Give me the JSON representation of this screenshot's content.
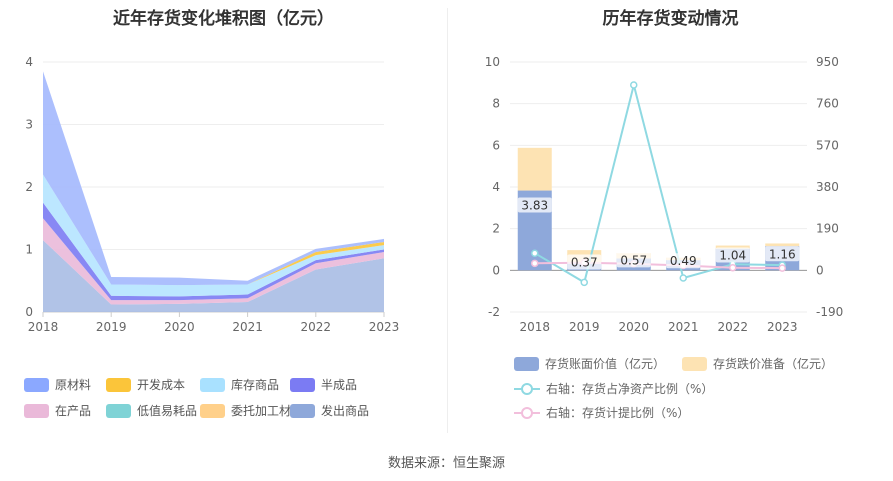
{
  "left": {
    "title": "近年存货变化堆积图（亿元）",
    "legend": [
      {
        "label": "原材料",
        "color": "#8ba8ff"
      },
      {
        "label": "开发成本",
        "color": "#fbc53a"
      },
      {
        "label": "库存商品",
        "color": "#a9e1ff"
      },
      {
        "label": "半成品",
        "color": "#7b7bf3"
      },
      {
        "label": "在产品",
        "color": "#eab9d9"
      },
      {
        "label": "低值易耗品",
        "color": "#7fd3d6"
      },
      {
        "label": "委托加工材料",
        "color": "#ffd08a"
      },
      {
        "label": "发出商品",
        "color": "#8ea8da"
      }
    ]
  },
  "right": {
    "title": "历年存货变动情况",
    "legend": [
      {
        "label": "存货账面价值（亿元）",
        "color": "#8ea8da",
        "kind": "bar"
      },
      {
        "label": "存货跌价准备（亿元）",
        "color": "#fde3b3",
        "kind": "bar"
      },
      {
        "label": "右轴：存货占净资产比例（%）",
        "color": "#8fd9e2",
        "kind": "line"
      },
      {
        "label": "右轴：存货计提比例（%）",
        "color": "#f2bfdc",
        "kind": "line"
      }
    ]
  },
  "source": "数据来源：恒生聚源",
  "chart_data": [
    {
      "type": "area",
      "title": "近年存货变化堆积图（亿元）",
      "categories": [
        "2018",
        "2019",
        "2020",
        "2021",
        "2022",
        "2023"
      ],
      "yticks": [
        "0",
        "1",
        "2",
        "3",
        "4"
      ],
      "ylim": [
        0,
        4
      ],
      "stacked": true,
      "series": [
        {
          "name": "发出商品",
          "color": "#a8bde4",
          "values": [
            1.15,
            0.12,
            0.13,
            0.16,
            0.68,
            0.86
          ]
        },
        {
          "name": "委托加工材料",
          "color": "#ffd08a",
          "values": [
            0.0,
            0.0,
            0.0,
            0.0,
            0.0,
            0.0
          ]
        },
        {
          "name": "低值易耗品",
          "color": "#7fd3d6",
          "values": [
            0.0,
            0.0,
            0.0,
            0.0,
            0.0,
            0.0
          ]
        },
        {
          "name": "在产品",
          "color": "#eab9d9",
          "values": [
            0.35,
            0.07,
            0.06,
            0.06,
            0.1,
            0.1
          ]
        },
        {
          "name": "半成品",
          "color": "#7b7bf3",
          "values": [
            0.25,
            0.07,
            0.06,
            0.06,
            0.05,
            0.04
          ]
        },
        {
          "name": "库存商品",
          "color": "#b5e4ff",
          "values": [
            0.45,
            0.18,
            0.18,
            0.16,
            0.08,
            0.07
          ]
        },
        {
          "name": "开发成本",
          "color": "#fbc53a",
          "values": [
            0.0,
            0.0,
            0.0,
            0.0,
            0.05,
            0.05
          ]
        },
        {
          "name": "原材料",
          "color": "#a3b8fd",
          "values": [
            1.65,
            0.12,
            0.12,
            0.06,
            0.05,
            0.05
          ]
        }
      ]
    },
    {
      "type": "bar",
      "title": "历年存货变动情况",
      "categories": [
        "2018",
        "2019",
        "2020",
        "2021",
        "2022",
        "2023"
      ],
      "yticks_left": [
        "-2",
        "0",
        "2",
        "4",
        "6",
        "8",
        "10"
      ],
      "yticks_right": [
        "-190",
        "0",
        "190",
        "380",
        "570",
        "760",
        "950"
      ],
      "ylim_left": [
        -2,
        10
      ],
      "ylim_right": [
        -190,
        950
      ],
      "stacked": true,
      "series": [
        {
          "name": "存货账面价值（亿元）",
          "color": "#8ea8da",
          "values": [
            3.83,
            0.37,
            0.57,
            0.49,
            1.04,
            1.16
          ],
          "labels": [
            "3.83",
            "0.37",
            "0.57",
            "0.49",
            "1.04",
            "1.16"
          ]
        },
        {
          "name": "存货跌价准备（亿元）",
          "color": "#fde3b3",
          "values": [
            2.05,
            0.6,
            0.25,
            0.12,
            0.15,
            0.13
          ]
        }
      ],
      "line_series": [
        {
          "name": "右轴：存货占净资产比例（%）",
          "color": "#8fd9e2",
          "values": [
            78,
            -55,
            845,
            -35,
            28,
            24
          ]
        },
        {
          "name": "右轴：存货计提比例（%）",
          "color": "#f2bfdc",
          "values": [
            32,
            35,
            30,
            22,
            12,
            10
          ]
        }
      ]
    }
  ]
}
